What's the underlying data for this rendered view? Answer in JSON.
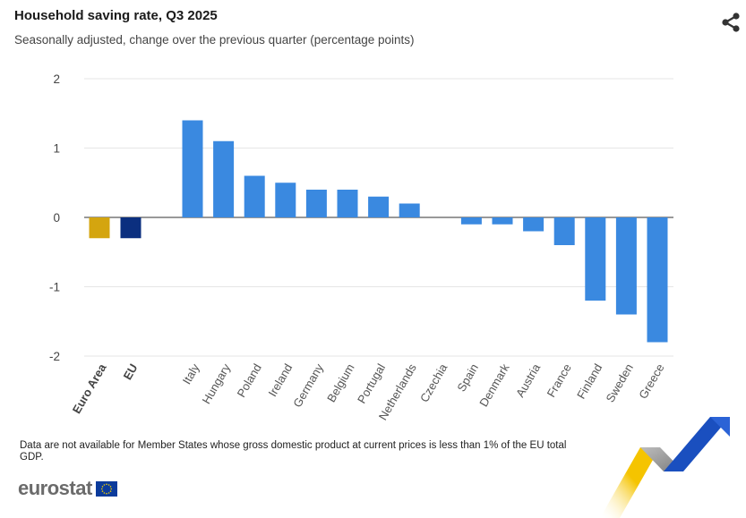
{
  "header": {
    "title": "Household saving rate, Q3 2025",
    "subtitle": "Seasonally adjusted, change over the previous quarter (percentage points)"
  },
  "toolbar": {
    "share_icon": "share-icon"
  },
  "footer": {
    "note": "Data are not available for Member States whose gross domestic product at current prices is less than 1% of the EU total GDP.",
    "brand": "eurostat",
    "flag_icon": "eu-flag-icon"
  },
  "colors": {
    "euro_area": "#d4a50f",
    "eu": "#0b2f7f",
    "countries": "#3a89e0",
    "grid": "#e6e6e6",
    "deco_yellow": "#f5c400",
    "deco_blue": "#1a4fbf",
    "deco_grey": "#9a9a9a"
  },
  "chart_data": {
    "type": "bar",
    "title": "Household saving rate, Q3 2025",
    "subtitle": "Seasonally adjusted, change over the previous quarter (percentage points)",
    "ylim": [
      -2,
      2
    ],
    "yticks": [
      "2",
      "1",
      "0",
      "-1",
      "-2"
    ],
    "grid": true,
    "categories": [
      "Euro Area",
      "EU",
      "Italy",
      "Hungary",
      "Poland",
      "Ireland",
      "Germany",
      "Belgium",
      "Portugal",
      "Netherlands",
      "Czechia",
      "Spain",
      "Denmark",
      "Austria",
      "France",
      "Finland",
      "Sweden",
      "Greece"
    ],
    "values": [
      -0.3,
      -0.3,
      1.4,
      1.1,
      0.6,
      0.5,
      0.4,
      0.4,
      0.3,
      0.2,
      0.0,
      -0.1,
      -0.1,
      -0.2,
      -0.4,
      -1.2,
      -1.4,
      -1.8
    ],
    "groups": [
      "euro_area",
      "eu",
      "country",
      "country",
      "country",
      "country",
      "country",
      "country",
      "country",
      "country",
      "country",
      "country",
      "country",
      "country",
      "country",
      "country",
      "country",
      "country"
    ]
  }
}
